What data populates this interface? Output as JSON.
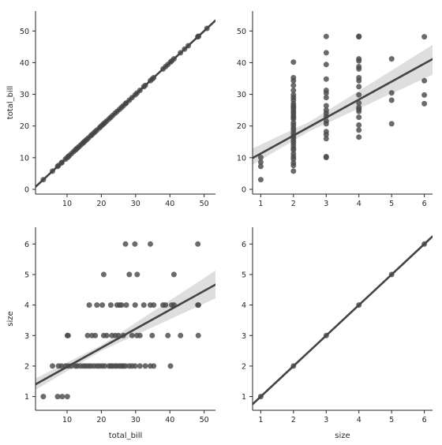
{
  "chart_data": [
    {
      "type": "scatter",
      "panel": "top-left",
      "xvar": "total_bill",
      "yvar": "total_bill",
      "xlabel": "",
      "ylabel": "total_bill",
      "xlim": [
        0.8,
        53.3
      ],
      "ylim": [
        -1.5,
        56.3
      ],
      "xticks": [
        10,
        20,
        30,
        40,
        50
      ],
      "yticks": [
        0,
        10,
        20,
        30,
        40,
        50
      ],
      "x": [
        3.07,
        5.75,
        7.25,
        7.51,
        8.35,
        8.52,
        9.55,
        10.07,
        10.34,
        10.59,
        11.24,
        11.87,
        12.43,
        12.69,
        13.03,
        13.42,
        13.94,
        14.48,
        14.78,
        15.04,
        15.48,
        15.77,
        16.27,
        16.97,
        17.29,
        17.82,
        18.24,
        18.71,
        19.44,
        19.82,
        20.29,
        20.69,
        21.01,
        21.58,
        22.23,
        22.76,
        23.33,
        24.06,
        24.59,
        25.29,
        25.89,
        26.41,
        27.05,
        27.28,
        28.15,
        28.97,
        29.85,
        30.4,
        31.27,
        32.4,
        32.83,
        34.3,
        34.83,
        35.26,
        38.01,
        38.73,
        39.42,
        40.17,
        40.55,
        41.19,
        43.11,
        44.3,
        45.35,
        48.17,
        48.27,
        48.33,
        50.81
      ],
      "y": [
        3.07,
        5.75,
        7.25,
        7.51,
        8.35,
        8.52,
        9.55,
        10.07,
        10.34,
        10.59,
        11.24,
        11.87,
        12.43,
        12.69,
        13.03,
        13.42,
        13.94,
        14.48,
        14.78,
        15.04,
        15.48,
        15.77,
        16.27,
        16.97,
        17.29,
        17.82,
        18.24,
        18.71,
        19.44,
        19.82,
        20.29,
        20.69,
        21.01,
        21.58,
        22.23,
        22.76,
        23.33,
        24.06,
        24.59,
        25.29,
        25.89,
        26.41,
        27.05,
        27.28,
        28.15,
        28.97,
        29.85,
        30.4,
        31.27,
        32.4,
        32.83,
        34.3,
        34.83,
        35.26,
        38.01,
        38.73,
        39.42,
        40.17,
        40.55,
        41.19,
        43.11,
        44.3,
        45.35,
        48.17,
        48.27,
        48.33,
        50.81
      ],
      "regression": {
        "slope": 1,
        "intercept": 0
      },
      "ci_band": []
    },
    {
      "type": "scatter",
      "panel": "top-right",
      "xvar": "size",
      "yvar": "total_bill",
      "xlabel": "",
      "ylabel": "",
      "xlim": [
        0.75,
        6.25
      ],
      "ylim": [
        -1.5,
        56.3
      ],
      "xticks": [
        1,
        2,
        3,
        4,
        5,
        6
      ],
      "yticks": [
        0,
        10,
        20,
        30,
        40,
        50
      ],
      "x": [
        1,
        1,
        1,
        1,
        2,
        2,
        2,
        2,
        2,
        2,
        2,
        2,
        2,
        2,
        2,
        2,
        2,
        2,
        2,
        2,
        2,
        2,
        2,
        2,
        2,
        2,
        2,
        2,
        2,
        2,
        2,
        2,
        2,
        2,
        2,
        2,
        2,
        2,
        2,
        3,
        3,
        3,
        3,
        3,
        3,
        3,
        3,
        3,
        3,
        3,
        3,
        3,
        3,
        3,
        3,
        3,
        3,
        4,
        4,
        4,
        4,
        4,
        4,
        4,
        4,
        4,
        4,
        4,
        4,
        4,
        4,
        4,
        4,
        4,
        4,
        5,
        5,
        5,
        5,
        6,
        6,
        6,
        6
      ],
      "y": [
        3.07,
        7.25,
        8.58,
        10.07,
        5.75,
        7.51,
        8.35,
        9.55,
        10.34,
        11.24,
        12.43,
        13.03,
        13.94,
        14.78,
        15.48,
        16.27,
        16.97,
        17.82,
        18.71,
        19.44,
        20.29,
        21.01,
        22.23,
        22.76,
        23.33,
        24.06,
        24.59,
        25.29,
        25.89,
        26.41,
        27.05,
        28.15,
        28.97,
        29.85,
        31.27,
        32.83,
        34.3,
        35.26,
        40.17,
        10.07,
        10.34,
        16.0,
        17.29,
        18.24,
        20.69,
        21.58,
        23.1,
        24.06,
        25.0,
        26.41,
        28.97,
        30.4,
        31.27,
        34.83,
        39.42,
        43.11,
        48.27,
        16.49,
        18.71,
        20.29,
        22.76,
        24.59,
        25.29,
        25.89,
        27.28,
        29.85,
        32.4,
        34.3,
        35.26,
        38.01,
        38.73,
        40.55,
        41.19,
        48.17,
        48.33,
        20.69,
        28.15,
        30.46,
        41.19,
        27.05,
        29.8,
        34.3,
        48.17
      ],
      "regression": {
        "slope": 5.68,
        "intercept": 5.62
      },
      "ci_band": [
        {
          "x": 0.75,
          "lower": 7.8,
          "upper": 12.9
        },
        {
          "x": 2.5,
          "lower": 18.4,
          "upper": 21.4
        },
        {
          "x": 6.25,
          "lower": 36.2,
          "upper": 45.6
        }
      ]
    },
    {
      "type": "scatter",
      "panel": "bottom-left",
      "xvar": "total_bill",
      "yvar": "size",
      "xlabel": "total_bill",
      "ylabel": "size",
      "xlim": [
        0.8,
        53.3
      ],
      "ylim": [
        0.55,
        6.55
      ],
      "xticks": [
        10,
        20,
        30,
        40,
        50
      ],
      "yticks": [
        1,
        2,
        3,
        4,
        5,
        6
      ],
      "x": [
        3.07,
        7.25,
        8.58,
        10.07,
        5.75,
        7.51,
        8.35,
        9.55,
        10.34,
        11.24,
        12.43,
        13.03,
        13.94,
        14.78,
        15.48,
        16.27,
        16.97,
        17.82,
        18.71,
        19.44,
        20.29,
        21.01,
        22.23,
        22.76,
        23.33,
        24.06,
        24.59,
        25.29,
        25.89,
        26.41,
        27.05,
        28.15,
        28.97,
        29.85,
        31.27,
        32.83,
        34.3,
        35.26,
        40.17,
        10.07,
        10.34,
        16.0,
        17.29,
        18.24,
        20.69,
        21.58,
        23.1,
        24.06,
        25.0,
        26.41,
        28.97,
        30.4,
        31.27,
        34.83,
        39.42,
        43.11,
        48.27,
        16.49,
        18.71,
        20.29,
        22.76,
        24.59,
        25.29,
        25.89,
        27.28,
        29.85,
        32.4,
        34.3,
        35.26,
        38.01,
        38.73,
        40.55,
        41.19,
        48.17,
        48.33,
        20.69,
        28.15,
        30.46,
        41.19,
        27.05,
        29.8,
        34.3,
        48.17
      ],
      "y": [
        1,
        1,
        1,
        1,
        2,
        2,
        2,
        2,
        2,
        2,
        2,
        2,
        2,
        2,
        2,
        2,
        2,
        2,
        2,
        2,
        2,
        2,
        2,
        2,
        2,
        2,
        2,
        2,
        2,
        2,
        2,
        2,
        2,
        2,
        2,
        2,
        2,
        2,
        2,
        3,
        3,
        3,
        3,
        3,
        3,
        3,
        3,
        3,
        3,
        3,
        3,
        3,
        3,
        3,
        3,
        3,
        3,
        4,
        4,
        4,
        4,
        4,
        4,
        4,
        4,
        4,
        4,
        4,
        4,
        4,
        4,
        4,
        4,
        4,
        4,
        5,
        5,
        5,
        5,
        6,
        6,
        6,
        6
      ],
      "regression": {
        "slope": 0.0623,
        "intercept": 1.35
      },
      "ci_band": [
        {
          "x": 0.8,
          "lower": 1.22,
          "upper": 1.59
        },
        {
          "x": 20.0,
          "lower": 2.5,
          "upper": 2.68
        },
        {
          "x": 53.3,
          "lower": 4.22,
          "upper": 5.13
        }
      ]
    },
    {
      "type": "scatter",
      "panel": "bottom-right",
      "xvar": "size",
      "yvar": "size",
      "xlabel": "size",
      "ylabel": "",
      "xlim": [
        0.75,
        6.25
      ],
      "ylim": [
        0.55,
        6.55
      ],
      "xticks": [
        1,
        2,
        3,
        4,
        5,
        6
      ],
      "yticks": [
        1,
        2,
        3,
        4,
        5,
        6
      ],
      "x": [
        1,
        2,
        3,
        4,
        5,
        6
      ],
      "y": [
        1,
        2,
        3,
        4,
        5,
        6
      ],
      "regression": {
        "slope": 1,
        "intercept": 0
      },
      "ci_band": []
    }
  ]
}
